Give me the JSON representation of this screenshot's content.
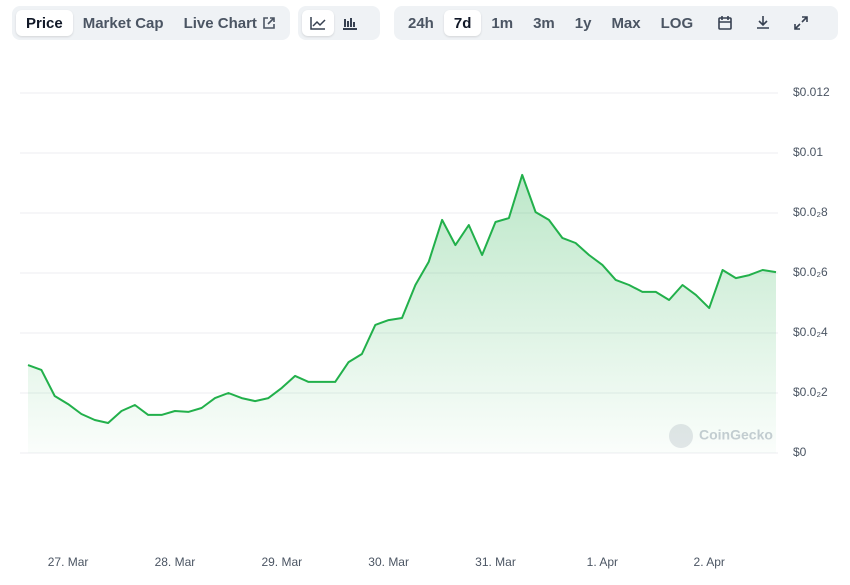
{
  "toolbar": {
    "tabs": [
      "Price",
      "Market Cap",
      "Live Chart"
    ],
    "ranges": [
      "24h",
      "7d",
      "1m",
      "3m",
      "1y",
      "Max",
      "LOG"
    ]
  },
  "chart_data": {
    "type": "line",
    "watermark": "CoinGecko",
    "color": "#22b04b",
    "categories": [
      null,
      null,
      null,
      "27. Mar",
      null,
      null,
      null,
      null,
      null,
      null,
      null,
      "28. Mar",
      null,
      null,
      null,
      null,
      null,
      null,
      null,
      "29. Mar",
      null,
      null,
      null,
      null,
      null,
      null,
      null,
      "30. Mar",
      null,
      null,
      null,
      null,
      null,
      null,
      null,
      "31. Mar",
      null,
      null,
      null,
      null,
      null,
      null,
      null,
      "1. Apr",
      null,
      null,
      null,
      null,
      null,
      null,
      null,
      "2. Apr",
      null,
      null,
      null,
      null,
      null
    ],
    "values": [
      0.00293,
      0.00277,
      0.0019,
      0.00163,
      0.0013,
      0.0011,
      0.001,
      0.0014,
      0.0016,
      0.00127,
      0.00127,
      0.0014,
      0.00137,
      0.0015,
      0.00183,
      0.002,
      0.00183,
      0.00173,
      0.00183,
      0.00217,
      0.00257,
      0.00237,
      0.00237,
      0.00237,
      0.00303,
      0.0033,
      0.00427,
      0.00443,
      0.0045,
      0.0056,
      0.00637,
      0.00777,
      0.00693,
      0.0076,
      0.0066,
      0.0077,
      0.00783,
      0.00927,
      0.00803,
      0.00777,
      0.00717,
      0.007,
      0.0066,
      0.00627,
      0.00577,
      0.0056,
      0.00537,
      0.00537,
      0.0051,
      0.0056,
      0.00527,
      0.00483,
      0.0061,
      0.00583,
      0.00593,
      0.0061,
      0.00603
    ],
    "ylim": [
      0,
      0.012
    ],
    "yticks": [
      {
        "value": 0,
        "label": "$0"
      },
      {
        "value": 0.002,
        "label": "$0.0₂2"
      },
      {
        "value": 0.004,
        "label": "$0.0₂4"
      },
      {
        "value": 0.006,
        "label": "$0.0₂6"
      },
      {
        "value": 0.008,
        "label": "$0.0₂8"
      },
      {
        "value": 0.01,
        "label": "$0.01"
      },
      {
        "value": 0.012,
        "label": "$0.012"
      }
    ],
    "grid": true
  }
}
